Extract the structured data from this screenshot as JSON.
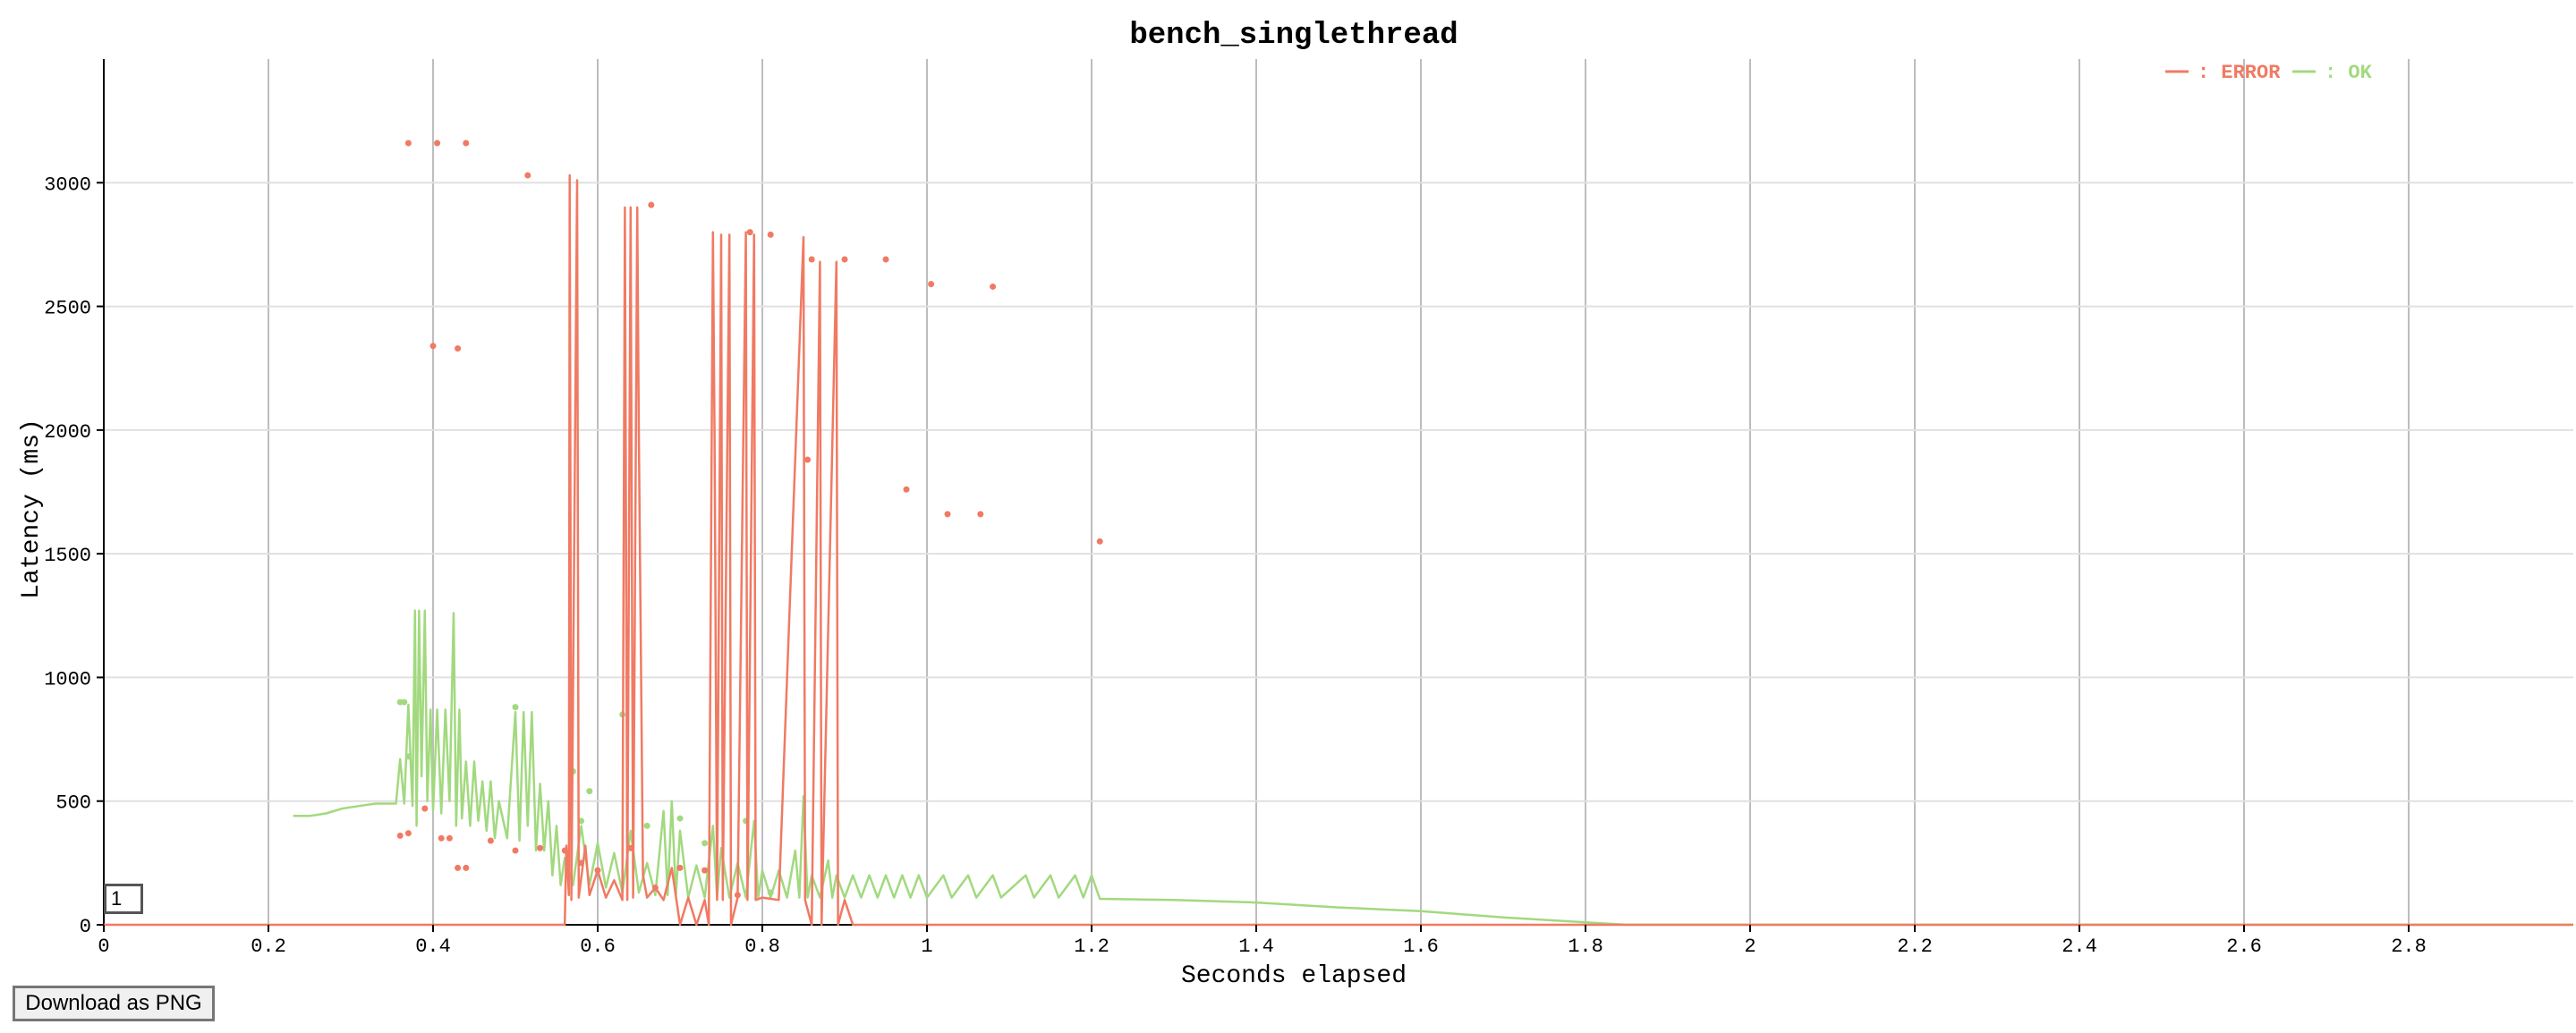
{
  "download_button": {
    "label": "Download as PNG"
  },
  "brush_label": "1",
  "chart_data": {
    "type": "line",
    "title": "bench_singlethread",
    "xlabel": "Seconds elapsed",
    "ylabel": "Latency (ms)",
    "xlim": [
      0,
      3.0
    ],
    "ylim": [
      0,
      3500
    ],
    "x_ticks": [
      "0",
      "0.2",
      "0.4",
      "0.6",
      "0.8",
      "1",
      "1.2",
      "1.4",
      "1.6",
      "1.8",
      "2",
      "2.2",
      "2.4",
      "2.6",
      "2.8"
    ],
    "y_ticks": [
      "0",
      "500",
      "1000",
      "1500",
      "2000",
      "2500",
      "3000"
    ],
    "x_tick_values": [
      0,
      0.2,
      0.4,
      0.6,
      0.8,
      1.0,
      1.2,
      1.4,
      1.6,
      1.8,
      2.0,
      2.2,
      2.4,
      2.6,
      2.8
    ],
    "y_tick_values": [
      0,
      500,
      1000,
      1500,
      2000,
      2500,
      3000
    ],
    "grid": true,
    "legend_position": "top-right",
    "legend": [
      {
        "label": ": ERROR",
        "color": "#f07a63"
      },
      {
        "label": ": OK",
        "color": "#a2d97f"
      }
    ],
    "series": [
      {
        "name": "ERROR",
        "color": "#f07a63",
        "line": [
          [
            0.0,
            0
          ],
          [
            0.56,
            0
          ],
          [
            0.562,
            320
          ],
          [
            0.565,
            120
          ],
          [
            0.566,
            3030
          ],
          [
            0.568,
            100
          ],
          [
            0.575,
            3010
          ],
          [
            0.577,
            110
          ],
          [
            0.585,
            320
          ],
          [
            0.59,
            120
          ],
          [
            0.6,
            220
          ],
          [
            0.61,
            110
          ],
          [
            0.62,
            180
          ],
          [
            0.63,
            100
          ],
          [
            0.633,
            2900
          ],
          [
            0.636,
            100
          ],
          [
            0.64,
            2900
          ],
          [
            0.643,
            110
          ],
          [
            0.648,
            2900
          ],
          [
            0.65,
            1980
          ],
          [
            0.655,
            200
          ],
          [
            0.66,
            110
          ],
          [
            0.67,
            150
          ],
          [
            0.68,
            100
          ],
          [
            0.69,
            230
          ],
          [
            0.7,
            0
          ],
          [
            0.71,
            110
          ],
          [
            0.72,
            0
          ],
          [
            0.73,
            100
          ],
          [
            0.735,
            0
          ],
          [
            0.74,
            2800
          ],
          [
            0.742,
            1980
          ],
          [
            0.745,
            100
          ],
          [
            0.75,
            2790
          ],
          [
            0.752,
            100
          ],
          [
            0.76,
            2790
          ],
          [
            0.762,
            0
          ],
          [
            0.77,
            110
          ],
          [
            0.78,
            2800
          ],
          [
            0.782,
            100
          ],
          [
            0.79,
            2790
          ],
          [
            0.792,
            100
          ],
          [
            0.8,
            110
          ],
          [
            0.82,
            100
          ],
          [
            0.85,
            2780
          ],
          [
            0.852,
            100
          ],
          [
            0.86,
            0
          ],
          [
            0.87,
            2680
          ],
          [
            0.872,
            0
          ],
          [
            0.89,
            2680
          ],
          [
            0.892,
            0
          ],
          [
            0.9,
            100
          ],
          [
            0.91,
            0
          ],
          [
            3.0,
            0
          ]
        ],
        "points": [
          [
            0.37,
            3160
          ],
          [
            0.405,
            3160
          ],
          [
            0.44,
            3160
          ],
          [
            0.515,
            3030
          ],
          [
            0.665,
            2910
          ],
          [
            0.785,
            2800
          ],
          [
            0.81,
            2790
          ],
          [
            0.86,
            2690
          ],
          [
            0.9,
            2690
          ],
          [
            0.95,
            2690
          ],
          [
            1.005,
            2590
          ],
          [
            1.08,
            2580
          ],
          [
            0.4,
            2340
          ],
          [
            0.43,
            2330
          ],
          [
            0.855,
            1880
          ],
          [
            0.975,
            1760
          ],
          [
            1.025,
            1660
          ],
          [
            1.065,
            1660
          ],
          [
            1.21,
            1550
          ],
          [
            0.36,
            360
          ],
          [
            0.37,
            370
          ],
          [
            0.39,
            470
          ],
          [
            0.41,
            350
          ],
          [
            0.42,
            350
          ],
          [
            0.43,
            230
          ],
          [
            0.44,
            230
          ],
          [
            0.47,
            340
          ],
          [
            0.5,
            300
          ],
          [
            0.53,
            310
          ],
          [
            0.56,
            300
          ],
          [
            0.58,
            250
          ],
          [
            0.6,
            220
          ],
          [
            0.64,
            310
          ],
          [
            0.67,
            150
          ],
          [
            0.7,
            230
          ],
          [
            0.73,
            220
          ],
          [
            0.77,
            120
          ]
        ]
      },
      {
        "name": "OK",
        "color": "#a2d97f",
        "line": [
          [
            0.23,
            440
          ],
          [
            0.25,
            440
          ],
          [
            0.27,
            450
          ],
          [
            0.29,
            470
          ],
          [
            0.31,
            480
          ],
          [
            0.33,
            490
          ],
          [
            0.355,
            490
          ],
          [
            0.36,
            670
          ],
          [
            0.365,
            490
          ],
          [
            0.37,
            890
          ],
          [
            0.375,
            480
          ],
          [
            0.378,
            1270
          ],
          [
            0.38,
            400
          ],
          [
            0.383,
            1270
          ],
          [
            0.386,
            600
          ],
          [
            0.39,
            1270
          ],
          [
            0.393,
            500
          ],
          [
            0.397,
            870
          ],
          [
            0.4,
            460
          ],
          [
            0.405,
            870
          ],
          [
            0.41,
            450
          ],
          [
            0.415,
            870
          ],
          [
            0.42,
            500
          ],
          [
            0.425,
            1260
          ],
          [
            0.428,
            400
          ],
          [
            0.432,
            870
          ],
          [
            0.435,
            430
          ],
          [
            0.44,
            660
          ],
          [
            0.445,
            400
          ],
          [
            0.45,
            660
          ],
          [
            0.455,
            420
          ],
          [
            0.46,
            580
          ],
          [
            0.465,
            380
          ],
          [
            0.47,
            580
          ],
          [
            0.475,
            350
          ],
          [
            0.48,
            500
          ],
          [
            0.49,
            350
          ],
          [
            0.5,
            860
          ],
          [
            0.505,
            340
          ],
          [
            0.51,
            860
          ],
          [
            0.515,
            400
          ],
          [
            0.52,
            860
          ],
          [
            0.525,
            300
          ],
          [
            0.53,
            570
          ],
          [
            0.535,
            300
          ],
          [
            0.54,
            500
          ],
          [
            0.545,
            200
          ],
          [
            0.55,
            400
          ],
          [
            0.555,
            160
          ],
          [
            0.56,
            270
          ],
          [
            0.57,
            160
          ],
          [
            0.58,
            400
          ],
          [
            0.59,
            160
          ],
          [
            0.6,
            330
          ],
          [
            0.61,
            150
          ],
          [
            0.62,
            290
          ],
          [
            0.63,
            130
          ],
          [
            0.64,
            380
          ],
          [
            0.65,
            130
          ],
          [
            0.66,
            250
          ],
          [
            0.67,
            120
          ],
          [
            0.68,
            460
          ],
          [
            0.685,
            120
          ],
          [
            0.69,
            500
          ],
          [
            0.695,
            120
          ],
          [
            0.7,
            380
          ],
          [
            0.71,
            110
          ],
          [
            0.72,
            240
          ],
          [
            0.73,
            110
          ],
          [
            0.74,
            400
          ],
          [
            0.745,
            110
          ],
          [
            0.75,
            310
          ],
          [
            0.76,
            110
          ],
          [
            0.77,
            250
          ],
          [
            0.78,
            110
          ],
          [
            0.79,
            420
          ],
          [
            0.795,
            110
          ],
          [
            0.8,
            220
          ],
          [
            0.81,
            110
          ],
          [
            0.82,
            220
          ],
          [
            0.83,
            110
          ],
          [
            0.84,
            300
          ],
          [
            0.845,
            110
          ],
          [
            0.85,
            520
          ],
          [
            0.855,
            110
          ],
          [
            0.86,
            200
          ],
          [
            0.87,
            110
          ],
          [
            0.88,
            260
          ],
          [
            0.885,
            110
          ],
          [
            0.89,
            200
          ],
          [
            0.9,
            110
          ],
          [
            0.91,
            200
          ],
          [
            0.92,
            110
          ],
          [
            0.93,
            200
          ],
          [
            0.94,
            110
          ],
          [
            0.95,
            200
          ],
          [
            0.96,
            110
          ],
          [
            0.97,
            200
          ],
          [
            0.98,
            110
          ],
          [
            0.99,
            200
          ],
          [
            1.0,
            110
          ],
          [
            1.02,
            200
          ],
          [
            1.03,
            110
          ],
          [
            1.05,
            200
          ],
          [
            1.06,
            110
          ],
          [
            1.08,
            200
          ],
          [
            1.09,
            110
          ],
          [
            1.12,
            200
          ],
          [
            1.13,
            110
          ],
          [
            1.15,
            200
          ],
          [
            1.16,
            110
          ],
          [
            1.18,
            200
          ],
          [
            1.19,
            110
          ],
          [
            1.2,
            200
          ],
          [
            1.21,
            105
          ],
          [
            1.3,
            100
          ],
          [
            1.4,
            90
          ],
          [
            1.5,
            70
          ],
          [
            1.6,
            55
          ],
          [
            1.7,
            30
          ],
          [
            1.8,
            10
          ],
          [
            1.85,
            0
          ],
          [
            3.0,
            0
          ]
        ],
        "points": [
          [
            0.36,
            900
          ],
          [
            0.365,
            900
          ],
          [
            0.37,
            680
          ],
          [
            0.5,
            880
          ],
          [
            0.57,
            620
          ],
          [
            0.58,
            420
          ],
          [
            0.59,
            540
          ],
          [
            0.63,
            850
          ],
          [
            0.66,
            400
          ],
          [
            0.7,
            430
          ],
          [
            0.73,
            330
          ],
          [
            0.78,
            420
          ],
          [
            0.81,
            130
          ]
        ]
      }
    ]
  }
}
